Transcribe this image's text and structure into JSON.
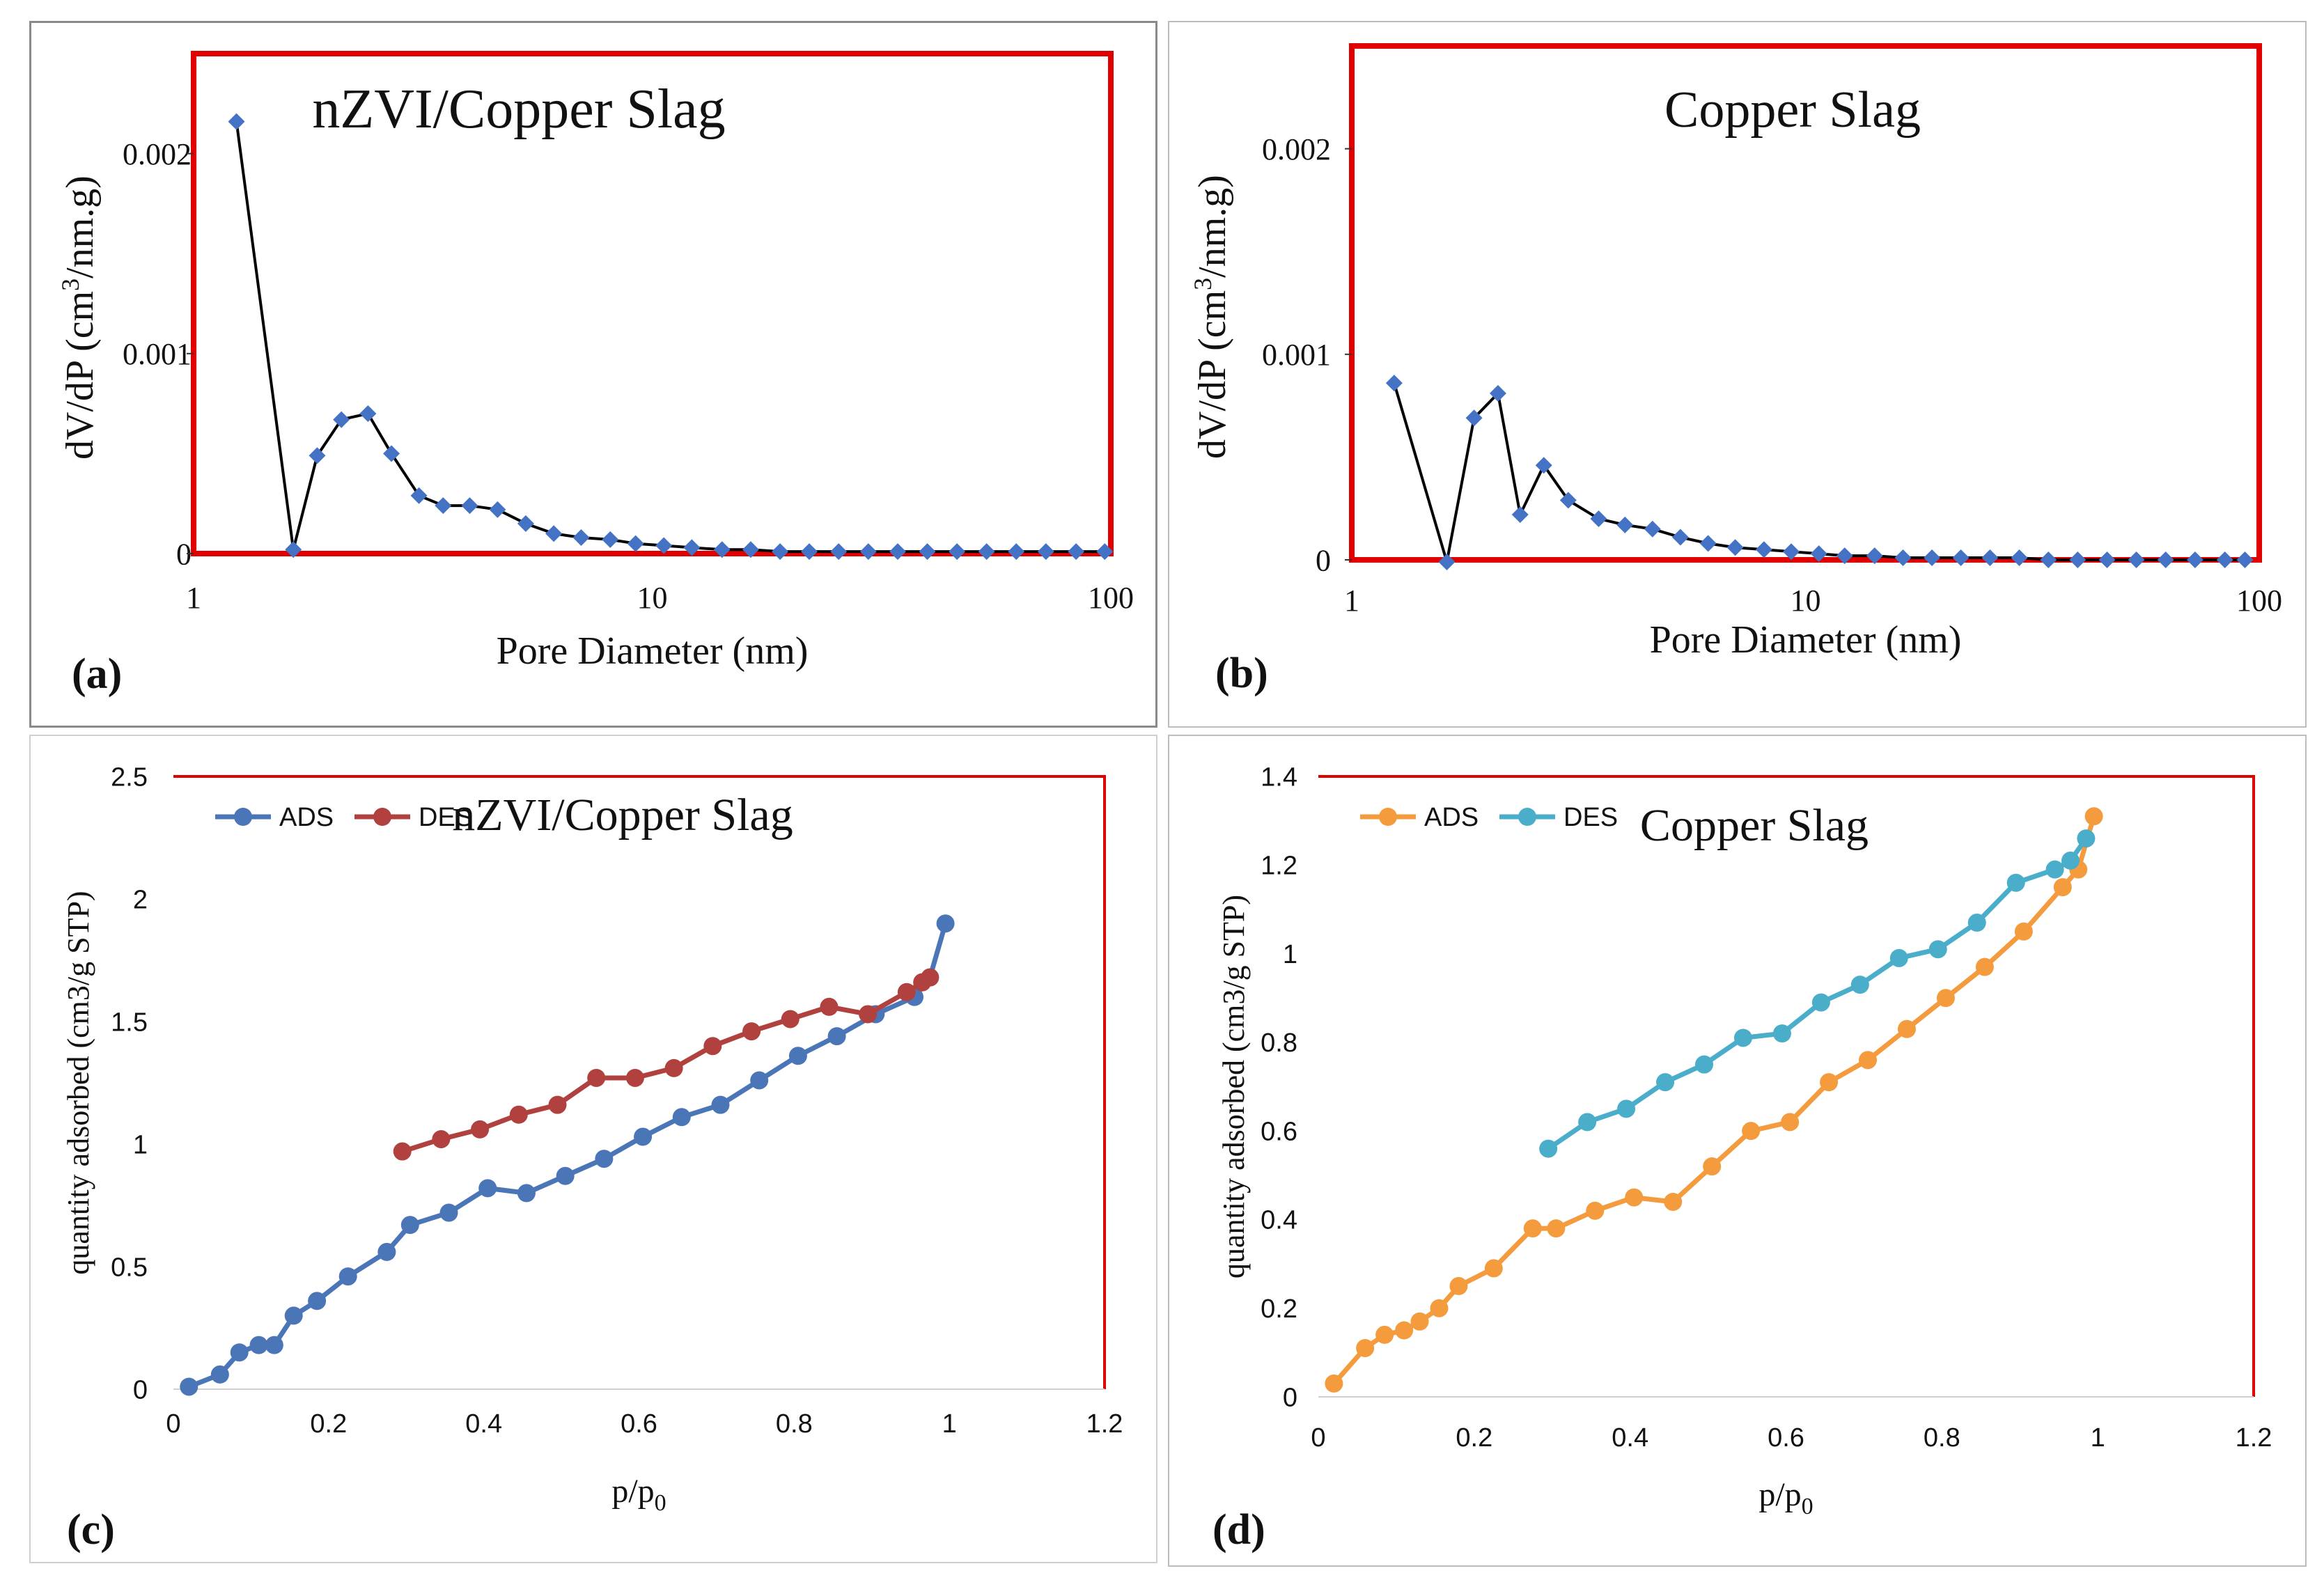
{
  "panels": [
    {
      "label_open": "(",
      "letter": "a",
      "label_close": ")"
    },
    {
      "label_open": "(",
      "letter": "b",
      "label_close": ")"
    },
    {
      "label_open": "(",
      "letter": "c",
      "label_close": ")"
    },
    {
      "label_open": "(",
      "letter": "d",
      "label_close": ")"
    }
  ],
  "colors": {
    "frame_red": "#e00000",
    "marker_blue": "#4472c4",
    "line_black": "#000000",
    "ads_blue": "#4a76b8",
    "des_red": "#b0413e",
    "ads_orange": "#f49b3e",
    "des_teal": "#4aaecb"
  },
  "chart_data": [
    {
      "type": "line",
      "xscale": "log",
      "title": "nZVI/Copper Slag",
      "xlabel": "Pore Diameter (nm)",
      "ylabel_pre": "dV/dP (cm",
      "ylabel_sup": "3",
      "ylabel_post": "/nm.g)",
      "xlim": [
        1,
        100
      ],
      "ylim": [
        0,
        0.0025
      ],
      "xticks": [
        1,
        10,
        100
      ],
      "xtick_labels": [
        "1",
        "10",
        "100"
      ],
      "yticks": [
        0,
        0.001,
        0.002
      ],
      "ytick_labels": [
        "0",
        "0.001",
        "0.002"
      ],
      "series": [
        {
          "name": "nZVI/Copper Slag",
          "x": [
            1.24,
            1.65,
            1.86,
            2.1,
            2.4,
            2.7,
            3.1,
            3.5,
            4.0,
            4.6,
            5.3,
            6.1,
            7.0,
            8.1,
            9.2,
            10.6,
            12.2,
            14.2,
            16.4,
            19.0,
            22.0,
            25.5,
            29.6,
            34.3,
            39.8,
            46.2,
            53.6,
            62.2,
            72.2,
            84.0,
            97.0
          ],
          "y": [
            0.00216,
            2e-05,
            0.00049,
            0.00067,
            0.0007,
            0.0005,
            0.00029,
            0.00024,
            0.00024,
            0.00022,
            0.00015,
            0.0001,
            8e-05,
            7e-05,
            5e-05,
            4e-05,
            3e-05,
            2e-05,
            2e-05,
            1e-05,
            1e-05,
            1e-05,
            1e-05,
            1e-05,
            1e-05,
            1e-05,
            1e-05,
            1e-05,
            1e-05,
            1e-05,
            1e-05
          ]
        }
      ]
    },
    {
      "type": "line",
      "xscale": "log",
      "title": "Copper Slag",
      "xlabel": "Pore Diameter (nm)",
      "ylabel_pre": "dV/dP (cm",
      "ylabel_sup": "3",
      "ylabel_post": "/nm.g)",
      "xlim": [
        1,
        100
      ],
      "ylim": [
        0,
        0.0025
      ],
      "xticks": [
        1,
        10,
        100
      ],
      "xtick_labels": [
        "1",
        "10",
        "100"
      ],
      "yticks": [
        0,
        0.001,
        0.002
      ],
      "ytick_labels": [
        "0",
        "0.001",
        "0.002"
      ],
      "series": [
        {
          "name": "Copper Slag",
          "x": [
            1.24,
            1.62,
            1.86,
            2.1,
            2.35,
            2.65,
            3.0,
            3.5,
            4.0,
            4.6,
            5.3,
            6.1,
            7.0,
            8.1,
            9.3,
            10.7,
            12.2,
            14.2,
            16.4,
            19.0,
            22.0,
            25.5,
            29.6,
            34.3,
            39.8,
            46.2,
            53.6,
            62.2,
            72.2,
            84.0,
            93.0
          ],
          "y": [
            0.00086,
            -1e-05,
            0.00069,
            0.00081,
            0.00022,
            0.00046,
            0.00029,
            0.0002,
            0.00017,
            0.00015,
            0.00011,
            8e-05,
            6e-05,
            5e-05,
            4e-05,
            3e-05,
            2e-05,
            2e-05,
            1e-05,
            1e-05,
            1e-05,
            1e-05,
            1e-05,
            0.0,
            0.0,
            0.0,
            0.0,
            0.0,
            0.0,
            0.0,
            0.0
          ]
        }
      ]
    },
    {
      "type": "line",
      "xscale": "linear",
      "title": "nZVI/Copper Slag",
      "xlabel_pre": "p/p",
      "xlabel_sub": "0",
      "ylabel": "quantity adsorbed (cm3/g STP)",
      "xlim": [
        0,
        1.2
      ],
      "ylim": [
        0,
        2.5
      ],
      "xticks": [
        0,
        0.2,
        0.4,
        0.6,
        0.8,
        1,
        1.2
      ],
      "xtick_labels": [
        "0",
        "0.2",
        "0.4",
        "0.6",
        "0.8",
        "1",
        "1.2"
      ],
      "yticks": [
        0,
        0.5,
        1,
        1.5,
        2,
        2.5
      ],
      "ytick_labels": [
        "0",
        "0.5",
        "1",
        "1.5",
        "2",
        "2.5"
      ],
      "legend_position": "top-left",
      "series": [
        {
          "name": "ADS",
          "x": [
            0.02,
            0.06,
            0.085,
            0.11,
            0.13,
            0.155,
            0.185,
            0.225,
            0.275,
            0.305,
            0.355,
            0.405,
            0.455,
            0.505,
            0.555,
            0.605,
            0.655,
            0.705,
            0.755,
            0.805,
            0.855,
            0.905,
            0.955,
            0.975,
            0.995
          ],
          "y": [
            0.01,
            0.06,
            0.15,
            0.18,
            0.18,
            0.3,
            0.36,
            0.46,
            0.56,
            0.67,
            0.72,
            0.82,
            0.8,
            0.87,
            0.94,
            1.03,
            1.11,
            1.16,
            1.26,
            1.36,
            1.44,
            1.53,
            1.6,
            1.68,
            1.9
          ]
        },
        {
          "name": "DES",
          "x": [
            0.295,
            0.345,
            0.395,
            0.445,
            0.495,
            0.545,
            0.595,
            0.645,
            0.695,
            0.745,
            0.795,
            0.845,
            0.895,
            0.945,
            0.965,
            0.975
          ],
          "y": [
            0.97,
            1.02,
            1.06,
            1.12,
            1.16,
            1.27,
            1.27,
            1.31,
            1.4,
            1.46,
            1.51,
            1.56,
            1.53,
            1.62,
            1.66,
            1.68
          ]
        }
      ]
    },
    {
      "type": "line",
      "xscale": "linear",
      "title": "Copper Slag",
      "xlabel_pre": "p/p",
      "xlabel_sub": "0",
      "ylabel": "quantity adsorbed (cm3/g STP)",
      "xlim": [
        0,
        1.2
      ],
      "ylim": [
        0,
        1.4
      ],
      "xticks": [
        0,
        0.2,
        0.4,
        0.6,
        0.8,
        1,
        1.2
      ],
      "xtick_labels": [
        "0",
        "0.2",
        "0.4",
        "0.6",
        "0.8",
        "1",
        "1.2"
      ],
      "yticks": [
        0,
        0.2,
        0.4,
        0.6,
        0.8,
        1,
        1.2,
        1.4
      ],
      "ytick_labels": [
        "0",
        "0.2",
        "0.4",
        "0.6",
        "0.8",
        "1",
        "1.2",
        "1.4"
      ],
      "legend_position": "top-left",
      "series": [
        {
          "name": "ADS",
          "x": [
            0.02,
            0.06,
            0.085,
            0.11,
            0.13,
            0.155,
            0.18,
            0.225,
            0.275,
            0.305,
            0.355,
            0.405,
            0.455,
            0.505,
            0.555,
            0.605,
            0.655,
            0.705,
            0.755,
            0.805,
            0.855,
            0.905,
            0.955,
            0.975,
            0.995
          ],
          "y": [
            0.03,
            0.11,
            0.14,
            0.15,
            0.17,
            0.2,
            0.25,
            0.29,
            0.38,
            0.38,
            0.42,
            0.45,
            0.44,
            0.52,
            0.6,
            0.62,
            0.71,
            0.76,
            0.83,
            0.9,
            0.97,
            1.05,
            1.15,
            1.19,
            1.31
          ]
        },
        {
          "name": "DES",
          "x": [
            0.295,
            0.345,
            0.395,
            0.445,
            0.495,
            0.545,
            0.595,
            0.645,
            0.695,
            0.745,
            0.795,
            0.845,
            0.895,
            0.945,
            0.965,
            0.985
          ],
          "y": [
            0.56,
            0.62,
            0.65,
            0.71,
            0.75,
            0.81,
            0.82,
            0.89,
            0.93,
            0.99,
            1.01,
            1.07,
            1.16,
            1.19,
            1.21,
            1.26
          ]
        }
      ]
    }
  ]
}
